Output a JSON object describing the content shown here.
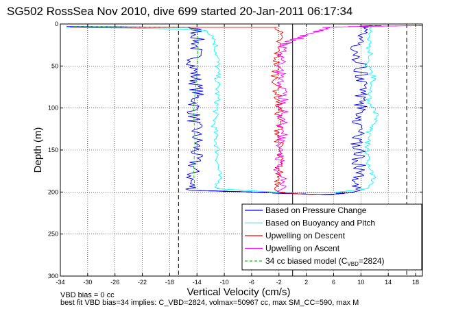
{
  "chart_data": {
    "type": "line",
    "title": "SG502 RossSea Nov 2010, dive 699 started 20-Jan-2011 06:17:34",
    "xlabel": "Vertical Velocity (cm/s)",
    "ylabel": "Depth (m)",
    "xlim": [
      -34,
      19
    ],
    "ylim": [
      300,
      0
    ],
    "y_reversed": true,
    "grid": true,
    "grid_style": "dotted",
    "x_ticks": [
      -34,
      -30,
      -26,
      -22,
      -18,
      -14,
      -10,
      -6,
      -2,
      2,
      6,
      10,
      14,
      18
    ],
    "y_ticks": [
      0,
      50,
      100,
      150,
      200,
      250,
      300
    ],
    "vertical_reference_lines": [
      {
        "x": -16.7,
        "style": "dashed",
        "color": "#000000"
      },
      {
        "x": 16.7,
        "style": "dashed",
        "color": "#000000"
      },
      {
        "x": 0,
        "style": "solid",
        "color": "#000000"
      }
    ],
    "legend_position": "bottom-right",
    "series": [
      {
        "name": "Based on Pressure Change",
        "color": "#0000ff",
        "style": "solid",
        "noise": 1.1,
        "points": [
          [
            -32,
            3
          ],
          [
            -15,
            4
          ],
          [
            -14,
            7
          ],
          [
            -14,
            20
          ],
          [
            -14.5,
            50
          ],
          [
            -14,
            80
          ],
          [
            -14.5,
            110
          ],
          [
            -14,
            140
          ],
          [
            -14.5,
            170
          ],
          [
            -15,
            190
          ],
          [
            -14.5,
            198
          ],
          [
            -6,
            200
          ],
          [
            0,
            202
          ],
          [
            5,
            203
          ],
          [
            9,
            200
          ],
          [
            9.8,
            170
          ],
          [
            9.5,
            130
          ],
          [
            10,
            100
          ],
          [
            10,
            60
          ],
          [
            9.5,
            30
          ],
          [
            10,
            5
          ],
          [
            11,
            2
          ],
          [
            13,
            2
          ]
        ]
      },
      {
        "name": "Based on Buoyancy and Pitch",
        "color": "#00ffff",
        "style": "solid",
        "noise": 0.45,
        "points": [
          [
            -33,
            4
          ],
          [
            -16,
            6
          ],
          [
            -12.5,
            8
          ],
          [
            -11.5,
            15
          ],
          [
            -11,
            40
          ],
          [
            -11,
            90
          ],
          [
            -11.5,
            120
          ],
          [
            -11,
            150
          ],
          [
            -10.8,
            185
          ],
          [
            -11,
            196
          ],
          [
            -5,
            199
          ],
          [
            0,
            201
          ],
          [
            6,
            201
          ],
          [
            11,
            196
          ],
          [
            11.8,
            183
          ],
          [
            11,
            170
          ],
          [
            11,
            130
          ],
          [
            12.5,
            115
          ],
          [
            12,
            100
          ],
          [
            11,
            90
          ],
          [
            12,
            65
          ],
          [
            11,
            50
          ],
          [
            11.5,
            40
          ],
          [
            11,
            25
          ],
          [
            11.5,
            10
          ],
          [
            11,
            5
          ],
          [
            12,
            2
          ]
        ]
      },
      {
        "name": "Upwelling on Descent",
        "color": "#ff0000",
        "style": "solid",
        "noise": 0.7,
        "points": [
          [
            -33,
            4
          ],
          [
            -2,
            4
          ],
          [
            -2,
            10
          ],
          [
            -2.5,
            60
          ],
          [
            -2,
            100
          ],
          [
            -2,
            140
          ],
          [
            -2,
            180
          ],
          [
            -2,
            200
          ],
          [
            0,
            202
          ],
          [
            3,
            203
          ]
        ]
      },
      {
        "name": "Upwelling on Ascent",
        "color": "#ff00ff",
        "style": "solid",
        "noise": 0.9,
        "points": [
          [
            -1.5,
            200
          ],
          [
            -2,
            170
          ],
          [
            -1.5,
            130
          ],
          [
            -1.5,
            90
          ],
          [
            -2,
            50
          ],
          [
            -1.5,
            25
          ],
          [
            5,
            4
          ],
          [
            9,
            3
          ],
          [
            18.5,
            2
          ]
        ]
      },
      {
        "name": "34 cc biased model (C_VBD=2824)",
        "color": "#00c800",
        "style": "dashed",
        "noise": 0,
        "points": [
          [
            -32,
            3
          ],
          [
            -15.5,
            4
          ],
          [
            -14,
            8
          ],
          [
            -13.8,
            20
          ],
          [
            -14,
            60
          ],
          [
            -14.5,
            100
          ],
          [
            -14.3,
            140
          ],
          [
            -14.5,
            175
          ],
          [
            -14.3,
            197
          ]
        ]
      }
    ]
  },
  "legend": {
    "entries": [
      {
        "label": "Based on Pressure Change",
        "color": "#0000ff",
        "dash": ""
      },
      {
        "label": "Based on Buoyancy and Pitch",
        "color": "#00ffff",
        "dash": ""
      },
      {
        "label": "Upwelling on Descent",
        "color": "#ff0000",
        "dash": ""
      },
      {
        "label": "Upwelling on Ascent",
        "color": "#ff00ff",
        "dash": ""
      },
      {
        "label": "34 cc biased model (C",
        "sub": "VBD",
        "suffix": "=2824)",
        "color": "#00c800",
        "dash": "4,3"
      }
    ]
  },
  "notes": {
    "line1": "VBD bias = 0 cc",
    "line2": "best fit VBD bias=34 implies: C_VBD=2824, volmax=50967 cc, max SM_CC=590, max M"
  }
}
